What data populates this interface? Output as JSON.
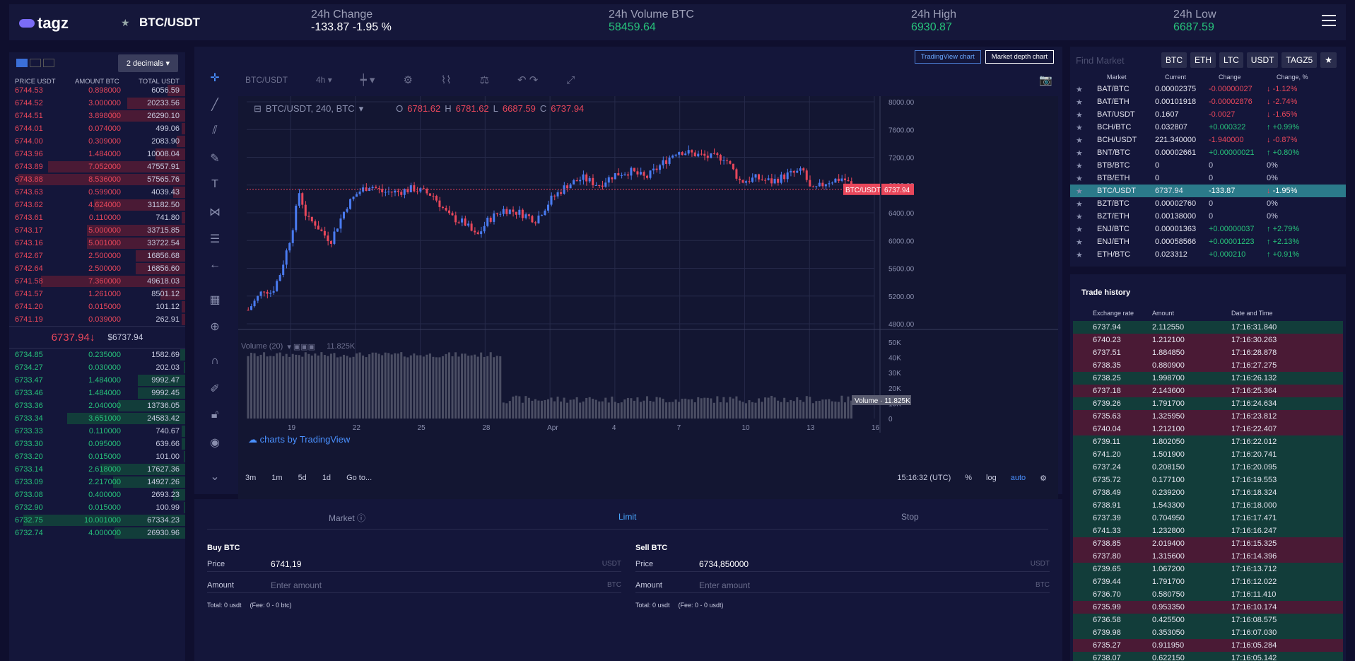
{
  "topbar": {
    "logo": "tagz",
    "pair": "BTC/USDT",
    "stats": [
      {
        "label": "24h Change",
        "value": "-133.87 -1.95 %",
        "color": "white"
      },
      {
        "label": "24h Volume BTC",
        "value": "58459.64",
        "color": "green"
      },
      {
        "label": "24h High",
        "value": "6930.87",
        "color": "green"
      },
      {
        "label": "24h Low",
        "value": "6687.59",
        "color": "green"
      }
    ]
  },
  "orderbook": {
    "decimals": "2 decimals",
    "columns": [
      "PRICE USDT",
      "AMOUNT BTC",
      "TOTAL USDT"
    ],
    "asks": [
      [
        "6744.53",
        "0.898000",
        "6056.59"
      ],
      [
        "6744.52",
        "3.000000",
        "20233.56"
      ],
      [
        "6744.51",
        "3.898000",
        "26290.10"
      ],
      [
        "6744.01",
        "0.074000",
        "499.06"
      ],
      [
        "6744.00",
        "0.309000",
        "2083.90"
      ],
      [
        "6743.96",
        "1.484000",
        "10008.04"
      ],
      [
        "6743.89",
        "7.052000",
        "47557.91"
      ],
      [
        "6743.88",
        "8.536000",
        "57565.76"
      ],
      [
        "6743.63",
        "0.599000",
        "4039.43"
      ],
      [
        "6743.62",
        "4.624000",
        "31182.50"
      ],
      [
        "6743.61",
        "0.110000",
        "741.80"
      ],
      [
        "6743.17",
        "5.000000",
        "33715.85"
      ],
      [
        "6743.16",
        "5.001000",
        "33722.54"
      ],
      [
        "6742.67",
        "2.500000",
        "16856.68"
      ],
      [
        "6742.64",
        "2.500000",
        "16856.60"
      ],
      [
        "6741.58",
        "7.360000",
        "49618.03"
      ],
      [
        "6741.57",
        "1.261000",
        "8501.12"
      ],
      [
        "6741.20",
        "0.015000",
        "101.12"
      ],
      [
        "6741.19",
        "0.039000",
        "262.91"
      ]
    ],
    "ask_depth": [
      0.1,
      0.33,
      0.43,
      0.02,
      0.05,
      0.17,
      0.78,
      0.95,
      0.07,
      0.52,
      0.02,
      0.56,
      0.56,
      0.28,
      0.28,
      0.82,
      0.14,
      0.02,
      0.02
    ],
    "mid_price": "6737.94↓",
    "mid_usd": "$6737.94",
    "bids": [
      [
        "6734.85",
        "0.235000",
        "1582.69"
      ],
      [
        "6734.27",
        "0.030000",
        "202.03"
      ],
      [
        "6733.47",
        "1.484000",
        "9992.47"
      ],
      [
        "6733.46",
        "1.484000",
        "9992.45"
      ],
      [
        "6733.36",
        "2.040000",
        "13736.05"
      ],
      [
        "6733.34",
        "3.651000",
        "24583.42"
      ],
      [
        "6733.33",
        "0.110000",
        "740.67"
      ],
      [
        "6733.30",
        "0.095000",
        "639.66"
      ],
      [
        "6733.20",
        "0.015000",
        "101.00"
      ],
      [
        "6733.14",
        "2.618000",
        "17627.36"
      ],
      [
        "6733.09",
        "2.217000",
        "14927.26"
      ],
      [
        "6733.08",
        "0.400000",
        "2693.23"
      ],
      [
        "6732.90",
        "0.015000",
        "100.99"
      ],
      [
        "6732.75",
        "10.001000",
        "67334.23"
      ],
      [
        "6732.74",
        "4.000000",
        "26930.96"
      ]
    ],
    "bid_depth": [
      0.03,
      0.01,
      0.27,
      0.27,
      0.38,
      0.67,
      0.02,
      0.02,
      0.01,
      0.48,
      0.41,
      0.07,
      0.01,
      0.92,
      0.4
    ]
  },
  "chart": {
    "mode_buttons": [
      "TradingView chart",
      "Market depth chart"
    ],
    "symbol": "BTC/USDT",
    "interval": "4h",
    "legend": "BTC/USDT, 240, BTC",
    "ohlc": {
      "O": "6781.62",
      "H": "6781.62",
      "L": "6687.59",
      "C": "6737.94"
    },
    "price_ticks": [
      "8000.00",
      "7600.00",
      "7200.00",
      "6800.00",
      "6400.00",
      "6000.00",
      "5600.00",
      "5200.00",
      "4800.00"
    ],
    "last_price_label": "BTC/USDT",
    "last_price": "6737.94",
    "volume_legend": "Volume (20)",
    "volume_value": "11.825K",
    "volume_ticks": [
      "50K",
      "40K",
      "30K",
      "20K",
      "10K",
      "0"
    ],
    "volume_label": "Volume",
    "volume_last": "11.825K",
    "x_ticks": [
      "19",
      "22",
      "25",
      "28",
      "Apr",
      "4",
      "7",
      "10",
      "13",
      "16"
    ],
    "attribution": "charts by TradingView",
    "ranges": [
      "3m",
      "1m",
      "5d",
      "1d",
      "Go to..."
    ],
    "time": "15:16:32 (UTC)",
    "options": [
      "%",
      "log",
      "auto"
    ],
    "series_hint": "btc/usdt 4h candles, mid-March to mid-April"
  },
  "form": {
    "tabs": [
      "Market",
      "Limit",
      "Stop"
    ],
    "buy": {
      "title": "Buy BTC",
      "price_label": "Price",
      "price": "6741,19",
      "price_unit": "USDT",
      "amount_label": "Amount",
      "amount_placeholder": "Enter amount",
      "amount_unit": "BTC",
      "total": "Total: 0 usdt",
      "fee": "(Fee: 0 - 0 btc)"
    },
    "sell": {
      "title": "Sell BTC",
      "price_label": "Price",
      "price": "6734,850000",
      "price_unit": "USDT",
      "amount_label": "Amount",
      "amount_placeholder": "Enter amount",
      "amount_unit": "BTC",
      "total": "Total: 0 usdt",
      "fee": "(Fee: 0 - 0 usdt)"
    }
  },
  "markets": {
    "search_placeholder": "Find Market",
    "quotes": [
      "BTC",
      "ETH",
      "LTC",
      "USDT",
      "TAGZ5"
    ],
    "columns": [
      "Market",
      "Current",
      "Change",
      "Change, %"
    ],
    "rows": [
      [
        "BAT/BTC",
        "0.00002375",
        "-0.00000027",
        "-1.12%",
        "dn"
      ],
      [
        "BAT/ETH",
        "0.00101918",
        "-0.00002876",
        "-2.74%",
        "dn"
      ],
      [
        "BAT/USDT",
        "0.1607",
        "-0.0027",
        "-1.65%",
        "dn"
      ],
      [
        "BCH/BTC",
        "0.032807",
        "+0.000322",
        "+0.99%",
        "up"
      ],
      [
        "BCH/USDT",
        "221.340000",
        "-1.940000",
        "-0.87%",
        "dn"
      ],
      [
        "BNT/BTC",
        "0.00002661",
        "+0.00000021",
        "+0.80%",
        "up"
      ],
      [
        "BTB/BTC",
        "0",
        "0",
        "0%",
        "none"
      ],
      [
        "BTB/ETH",
        "0",
        "0",
        "0%",
        "none"
      ],
      [
        "BTC/USDT",
        "6737.94",
        "-133.87",
        "-1.95%",
        "sel"
      ],
      [
        "BZT/BTC",
        "0.00002760",
        "0",
        "0%",
        "none"
      ],
      [
        "BZT/ETH",
        "0.00138000",
        "0",
        "0%",
        "none"
      ],
      [
        "ENJ/BTC",
        "0.00001363",
        "+0.00000037",
        "+2.79%",
        "up"
      ],
      [
        "ENJ/ETH",
        "0.00058566",
        "+0.00001223",
        "+2.13%",
        "up"
      ],
      [
        "ETH/BTC",
        "0.023312",
        "+0.000210",
        "+0.91%",
        "up"
      ]
    ]
  },
  "history": {
    "title": "Trade history",
    "columns": [
      "Exchange rate",
      "Amount",
      "Date and Time"
    ],
    "rows": [
      [
        "6737.94",
        "2.112550",
        "17:16:31.840",
        "buy"
      ],
      [
        "6740.23",
        "1.212100",
        "17:16:30.263",
        "sell"
      ],
      [
        "6737.51",
        "1.884850",
        "17:16:28.878",
        "sell"
      ],
      [
        "6738.35",
        "0.880900",
        "17:16:27.275",
        "sell"
      ],
      [
        "6738.25",
        "1.998700",
        "17:16:26.132",
        "buy"
      ],
      [
        "6737.18",
        "2.143600",
        "17:16:25.364",
        "sell"
      ],
      [
        "6739.26",
        "1.791700",
        "17:16:24.634",
        "buy"
      ],
      [
        "6735.63",
        "1.325950",
        "17:16:23.812",
        "sell"
      ],
      [
        "6740.04",
        "1.212100",
        "17:16:22.407",
        "sell"
      ],
      [
        "6739.11",
        "1.802050",
        "17:16:22.012",
        "buy"
      ],
      [
        "6741.20",
        "1.501900",
        "17:16:20.741",
        "buy"
      ],
      [
        "6737.24",
        "0.208150",
        "17:16:20.095",
        "buy"
      ],
      [
        "6735.72",
        "0.177100",
        "17:16:19.553",
        "buy"
      ],
      [
        "6738.49",
        "0.239200",
        "17:16:18.324",
        "buy"
      ],
      [
        "6738.91",
        "1.543300",
        "17:16:18.000",
        "buy"
      ],
      [
        "6737.39",
        "0.704950",
        "17:16:17.471",
        "buy"
      ],
      [
        "6741.33",
        "1.232800",
        "17:16:16.247",
        "buy"
      ],
      [
        "6738.85",
        "2.019400",
        "17:16:15.325",
        "sell"
      ],
      [
        "6737.80",
        "1.315600",
        "17:16:14.396",
        "sell"
      ],
      [
        "6739.65",
        "1.067200",
        "17:16:13.712",
        "buy"
      ],
      [
        "6739.44",
        "1.791700",
        "17:16:12.022",
        "buy"
      ],
      [
        "6736.70",
        "0.580750",
        "17:16:11.410",
        "buy"
      ],
      [
        "6735.99",
        "0.953350",
        "17:16:10.174",
        "sell"
      ],
      [
        "6736.58",
        "0.425500",
        "17:16:08.575",
        "buy"
      ],
      [
        "6739.98",
        "0.353050",
        "17:16:07.030",
        "buy"
      ],
      [
        "6735.27",
        "0.911950",
        "17:16:05.284",
        "sell"
      ],
      [
        "6738.07",
        "0.622150",
        "17:16:05.142",
        "buy"
      ]
    ]
  }
}
